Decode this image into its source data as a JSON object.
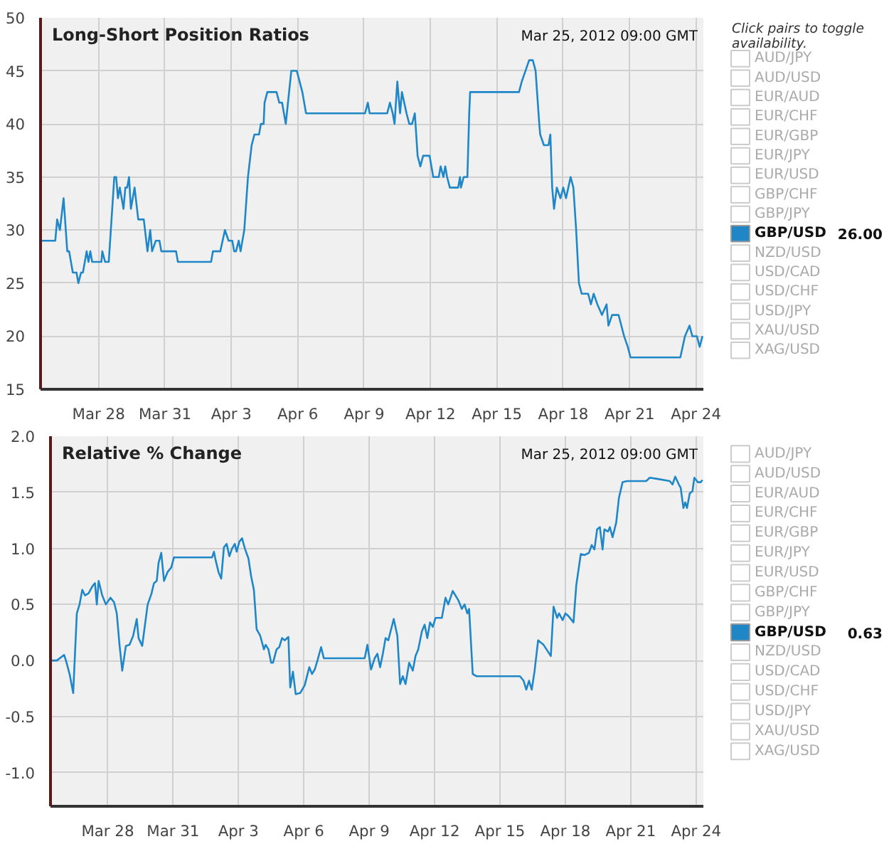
{
  "chart_data": [
    {
      "type": "line",
      "title": "Long-Short Position Ratios",
      "legend_title": "Click pairs to toggle availability.",
      "annotations": [
        "Mar 25, 2012 09:00 GMT",
        "26.00"
      ],
      "grid": true,
      "legend": "right",
      "xlim": [
        "2012-03-25T09:00",
        "2012-04-24T08:00"
      ],
      "xticks": [
        {
          "value": "2012-03-28",
          "label": "Mar 28"
        },
        {
          "value": "2012-03-31",
          "label": "Mar 31"
        },
        {
          "value": "2012-04-03",
          "label": "Apr 3"
        },
        {
          "value": "2012-04-06",
          "label": "Apr 6"
        },
        {
          "value": "2012-04-09",
          "label": "Apr 9"
        },
        {
          "value": "2012-04-12",
          "label": "Apr 12"
        },
        {
          "value": "2012-04-15",
          "label": "Apr 15"
        },
        {
          "value": "2012-04-18",
          "label": "Apr 18"
        },
        {
          "value": "2012-04-21",
          "label": "Apr 21"
        },
        {
          "value": "2012-04-24",
          "label": "Apr 24"
        }
      ],
      "ylim": [
        15,
        50
      ],
      "yticks": [
        15,
        20,
        25,
        30,
        35,
        40,
        45,
        50
      ],
      "series": [
        {
          "name": "AUD/JPY"
        },
        {
          "name": "AUD/USD"
        },
        {
          "name": "EUR/AUD"
        },
        {
          "name": "EUR/CHF"
        },
        {
          "name": "EUR/GBP"
        },
        {
          "name": "EUR/JPY"
        },
        {
          "name": "EUR/USD"
        },
        {
          "name": "GBP/CHF"
        },
        {
          "name": "GBP/JPY"
        },
        {
          "name": "GBP/USD",
          "color": "#1f86c8",
          "x": [
            "2012-03-25T09:00",
            "2012-03-26T01:00",
            "2012-03-26T03:00",
            "2012-03-26T06:00",
            "2012-03-26T10:00",
            "2012-03-26T14:00",
            "2012-03-26T16:00",
            "2012-03-26T20:00",
            "2012-03-27T00:00",
            "2012-03-27T02:00",
            "2012-03-27T05:00",
            "2012-03-27T07:00",
            "2012-03-27T11:00",
            "2012-03-27T13:00",
            "2012-03-27T15:00",
            "2012-03-27T17:00",
            "2012-03-28T03:00",
            "2012-03-28T04:00",
            "2012-03-28T07:00",
            "2012-03-28T11:00",
            "2012-03-28T17:00",
            "2012-03-28T19:00",
            "2012-03-28T21:00",
            "2012-03-28T23:00",
            "2012-03-29T03:00",
            "2012-03-29T05:00",
            "2012-03-29T07:00",
            "2012-03-29T09:00",
            "2012-03-29T11:00",
            "2012-03-29T15:00",
            "2012-03-29T19:00",
            "2012-03-30T01:00",
            "2012-03-30T05:00",
            "2012-03-30T08:00",
            "2012-03-30T10:00",
            "2012-03-30T14:00",
            "2012-03-30T18:00",
            "2012-03-30T20:00",
            "2012-03-31T12:00",
            "2012-03-31T14:00",
            "2012-04-02T02:00",
            "2012-04-02T04:00",
            "2012-04-02T12:00",
            "2012-04-02T17:00",
            "2012-04-02T21:00",
            "2012-04-03T01:00",
            "2012-04-03T03:00",
            "2012-04-03T05:00",
            "2012-04-03T08:00",
            "2012-04-03T10:00",
            "2012-04-03T14:00",
            "2012-04-03T18:00",
            "2012-04-03T22:00",
            "2012-04-04T01:00",
            "2012-04-04T06:00",
            "2012-04-04T08:00",
            "2012-04-04T11:00",
            "2012-04-04T12:00",
            "2012-04-04T15:00",
            "2012-04-05T01:00",
            "2012-04-05T04:00",
            "2012-04-05T07:00",
            "2012-04-05T11:00",
            "2012-04-05T17:00",
            "2012-04-05T23:00",
            "2012-04-06T05:00",
            "2012-04-06T09:00",
            "2012-04-09T01:00",
            "2012-04-09T04:00",
            "2012-04-09T06:00",
            "2012-04-10T01:00",
            "2012-04-10T04:00",
            "2012-04-10T07:00",
            "2012-04-10T09:00",
            "2012-04-10T12:00",
            "2012-04-10T15:00",
            "2012-04-10T17:00",
            "2012-04-10T22:00",
            "2012-04-11T01:00",
            "2012-04-11T04:00",
            "2012-04-11T07:00",
            "2012-04-11T10:00",
            "2012-04-11T13:00",
            "2012-04-11T16:00",
            "2012-04-11T23:00",
            "2012-04-12T03:00",
            "2012-04-12T09:00",
            "2012-04-12T11:00",
            "2012-04-12T14:00",
            "2012-04-12T16:00",
            "2012-04-12T18:00",
            "2012-04-12T21:00",
            "2012-04-13T06:00",
            "2012-04-13T08:00",
            "2012-04-13T09:00",
            "2012-04-13T12:00",
            "2012-04-13T16:00",
            "2012-04-13T18:00",
            "2012-04-13T19:00",
            "2012-04-16T00:00",
            "2012-04-16T03:00",
            "2012-04-16T07:00",
            "2012-04-16T11:00",
            "2012-04-16T15:00",
            "2012-04-16T18:00",
            "2012-04-16T22:00",
            "2012-04-16T23:00",
            "2012-04-17T03:00",
            "2012-04-17T08:00",
            "2012-04-17T10:00",
            "2012-04-17T12:00",
            "2012-04-17T14:00",
            "2012-04-17T17:00",
            "2012-04-17T21:00",
            "2012-04-18T00:00",
            "2012-04-18T03:00",
            "2012-04-18T08:00",
            "2012-04-18T11:00",
            "2012-04-18T14:00",
            "2012-04-18T17:00",
            "2012-04-18T20:00",
            "2012-04-19T03:00",
            "2012-04-19T06:00",
            "2012-04-19T09:00",
            "2012-04-19T13:00",
            "2012-04-19T18:00",
            "2012-04-19T23:00",
            "2012-04-20T01:00",
            "2012-04-20T05:00",
            "2012-04-20T12:00",
            "2012-04-20T15:00",
            "2012-04-20T18:00",
            "2012-04-20T22:00",
            "2012-04-21T01:00",
            "2012-04-23T07:00",
            "2012-04-23T12:00",
            "2012-04-23T17:00",
            "2012-04-23T20:00",
            "2012-04-24T01:00",
            "2012-04-24T04:00",
            "2012-04-24T07:00"
          ],
          "values": [
            29,
            29,
            31,
            30,
            33,
            28,
            28,
            26,
            26,
            25,
            26,
            26,
            28,
            27,
            28,
            27,
            27,
            28,
            27,
            27,
            35,
            35,
            33,
            34,
            32,
            34,
            34,
            35,
            32,
            34,
            31,
            31,
            28,
            30,
            28,
            29,
            29,
            28,
            28,
            27,
            27,
            28,
            28,
            30,
            29,
            29,
            28,
            28,
            29,
            28,
            30,
            35,
            38,
            39,
            39,
            40,
            40,
            42,
            43,
            43,
            42,
            42,
            40,
            45,
            45,
            43,
            41,
            41,
            42,
            41,
            41,
            42,
            41,
            40,
            44,
            41,
            43,
            41,
            40,
            40,
            41,
            37,
            36,
            37,
            37,
            35,
            35,
            36,
            35,
            36,
            35,
            34,
            34,
            35,
            34,
            35,
            35,
            41,
            43,
            43,
            44,
            45,
            46,
            46,
            45,
            40,
            39,
            38,
            38,
            39,
            34,
            32,
            34,
            33,
            34,
            33,
            35,
            34,
            30,
            25,
            24,
            24,
            23,
            24,
            23,
            22,
            23,
            21,
            22,
            22,
            21,
            20,
            19,
            18,
            18,
            20,
            21,
            20,
            20,
            19,
            20
          ]
        },
        {
          "name": "NZD/USD"
        },
        {
          "name": "USD/CAD"
        },
        {
          "name": "USD/CHF"
        },
        {
          "name": "USD/JPY"
        },
        {
          "name": "XAU/USD"
        },
        {
          "name": "XAG/USD"
        }
      ]
    },
    {
      "type": "line",
      "title": "Relative % Change",
      "annotations": [
        "Mar 25, 2012 09:00 GMT",
        "0.63"
      ],
      "grid": true,
      "legend": "right",
      "xlim": [
        "2012-03-25T09:00",
        "2012-04-24T08:00"
      ],
      "xticks": [
        {
          "value": "2012-03-28",
          "label": "Mar 28"
        },
        {
          "value": "2012-03-31",
          "label": "Mar 31"
        },
        {
          "value": "2012-04-03",
          "label": "Apr 3"
        },
        {
          "value": "2012-04-06",
          "label": "Apr 6"
        },
        {
          "value": "2012-04-09",
          "label": "Apr 9"
        },
        {
          "value": "2012-04-12",
          "label": "Apr 12"
        },
        {
          "value": "2012-04-15",
          "label": "Apr 15"
        },
        {
          "value": "2012-04-18",
          "label": "Apr 18"
        },
        {
          "value": "2012-04-21",
          "label": "Apr 21"
        },
        {
          "value": "2012-04-24",
          "label": "Apr 24"
        }
      ],
      "ylim": [
        -1.3,
        2.0
      ],
      "yticks": [
        {
          "value": -1.0,
          "label": "-1.0"
        },
        {
          "value": -0.5,
          "label": "-0.5"
        },
        {
          "value": 0,
          "label": "0.0"
        },
        {
          "value": 0.5,
          "label": "0.5"
        },
        {
          "value": 1.0,
          "label": "1.0"
        },
        {
          "value": 1.5,
          "label": "1.5"
        },
        {
          "value": 2.0,
          "label": "2.0"
        }
      ],
      "series": [
        {
          "name": "AUD/JPY"
        },
        {
          "name": "AUD/USD"
        },
        {
          "name": "EUR/AUD"
        },
        {
          "name": "EUR/CHF"
        },
        {
          "name": "EUR/GBP"
        },
        {
          "name": "EUR/JPY"
        },
        {
          "name": "EUR/USD"
        },
        {
          "name": "GBP/CHF"
        },
        {
          "name": "GBP/JPY"
        },
        {
          "name": "GBP/USD",
          "color": "#1f86c8",
          "x": [
            "2012-03-25T09:00",
            "2012-03-25T16:00",
            "2012-03-26T00:00",
            "2012-03-26T02:00",
            "2012-03-26T06:00",
            "2012-03-26T10:00",
            "2012-03-26T14:00",
            "2012-03-26T17:00",
            "2012-03-26T20:00",
            "2012-03-26T23:00",
            "2012-03-27T03:00",
            "2012-03-27T07:00",
            "2012-03-27T10:00",
            "2012-03-27T12:00",
            "2012-03-27T14:00",
            "2012-03-27T18:00",
            "2012-03-27T22:00",
            "2012-03-28T03:00",
            "2012-03-28T07:00",
            "2012-03-28T10:00",
            "2012-03-28T13:00",
            "2012-03-28T16:00",
            "2012-03-28T20:00",
            "2012-03-29T00:00",
            "2012-03-29T04:00",
            "2012-03-29T08:00",
            "2012-03-29T10:00",
            "2012-03-29T14:00",
            "2012-03-29T20:00",
            "2012-03-30T00:00",
            "2012-03-30T03:00",
            "2012-03-30T06:00",
            "2012-03-30T08:00",
            "2012-03-30T11:00",
            "2012-03-30T14:00",
            "2012-03-30T18:00",
            "2012-03-30T22:00",
            "2012-03-31T01:00",
            "2012-04-01T19:00",
            "2012-04-01T21:00",
            "2012-04-01T23:00",
            "2012-04-02T02:00",
            "2012-04-02T05:00",
            "2012-04-02T08:00",
            "2012-04-02T11:00",
            "2012-04-02T14:00",
            "2012-04-02T17:00",
            "2012-04-02T20:00",
            "2012-04-02T22:00",
            "2012-04-03T01:00",
            "2012-04-03T04:00",
            "2012-04-03T07:00",
            "2012-04-03T11:00",
            "2012-04-03T14:00",
            "2012-04-03T17:00",
            "2012-04-03T20:00",
            "2012-04-04T00:00",
            "2012-04-04T04:00",
            "2012-04-04T06:00",
            "2012-04-04T09:00",
            "2012-04-04T12:00",
            "2012-04-04T14:00",
            "2012-04-04T18:00",
            "2012-04-04T21:00",
            "2012-04-05T00:00",
            "2012-04-05T03:00",
            "2012-04-05T07:00",
            "2012-04-05T09:00",
            "2012-04-05T12:00",
            "2012-04-05T15:00",
            "2012-04-05T20:00",
            "2012-04-06T01:00",
            "2012-04-06T06:00",
            "2012-04-06T09:00",
            "2012-04-06T12:00",
            "2012-04-06T15:00",
            "2012-04-06T19:00",
            "2012-04-06T22:00",
            "2012-04-08T19:00",
            "2012-04-08T22:00",
            "2012-04-09T02:00",
            "2012-04-09T06:00",
            "2012-04-09T09:00",
            "2012-04-09T12:00",
            "2012-04-09T15:00",
            "2012-04-09T18:00",
            "2012-04-09T21:00",
            "2012-04-10T03:00",
            "2012-04-10T07:00",
            "2012-04-10T10:00",
            "2012-04-10T13:00",
            "2012-04-10T16:00",
            "2012-04-10T20:00",
            "2012-04-11T00:00",
            "2012-04-11T03:00",
            "2012-04-11T06:00",
            "2012-04-11T10:00",
            "2012-04-11T13:00",
            "2012-04-11T16:00",
            "2012-04-11T19:00",
            "2012-04-11T22:00",
            "2012-04-12T01:00",
            "2012-04-12T08:00",
            "2012-04-12T12:00",
            "2012-04-12T15:00",
            "2012-04-12T20:00",
            "2012-04-13T02:00",
            "2012-04-13T06:00",
            "2012-04-13T09:00",
            "2012-04-13T12:00",
            "2012-04-13T14:00",
            "2012-04-13T18:00",
            "2012-04-13T22:00",
            "2012-04-15T22:00",
            "2012-04-16T02:00",
            "2012-04-16T05:00",
            "2012-04-16T08:00",
            "2012-04-16T11:00",
            "2012-04-16T14:00",
            "2012-04-16T18:00",
            "2012-04-17T00:00",
            "2012-04-17T08:00",
            "2012-04-17T11:00",
            "2012-04-17T15:00",
            "2012-04-17T17:00",
            "2012-04-17T21:00",
            "2012-04-18T00:00",
            "2012-04-18T03:00",
            "2012-04-18T09:00",
            "2012-04-18T12:00",
            "2012-04-18T17:00",
            "2012-04-18T21:00",
            "2012-04-19T02:00",
            "2012-04-19T05:00",
            "2012-04-19T08:00",
            "2012-04-19T11:00",
            "2012-04-19T14:00",
            "2012-04-19T17:00",
            "2012-04-19T19:00",
            "2012-04-19T23:00",
            "2012-04-20T01:00",
            "2012-04-20T04:00",
            "2012-04-20T08:00",
            "2012-04-20T11:00",
            "2012-04-20T15:00",
            "2012-04-20T20:00",
            "2012-04-21T17:00",
            "2012-04-21T21:00",
            "2012-04-22T05:00",
            "2012-04-22T19:00",
            "2012-04-22T22:00",
            "2012-04-23T01:00",
            "2012-04-23T05:00",
            "2012-04-23T07:00",
            "2012-04-23T10:00",
            "2012-04-23T12:00",
            "2012-04-23T14:00",
            "2012-04-23T17:00",
            "2012-04-23T20:00",
            "2012-04-23T22:00",
            "2012-04-24T02:00",
            "2012-04-24T05:00",
            "2012-04-24T07:00"
          ],
          "values": [
            0.0,
            0.0,
            0.05,
            0.0,
            -0.12,
            -0.29,
            0.42,
            0.5,
            0.63,
            0.58,
            0.6,
            0.66,
            0.69,
            0.5,
            0.71,
            0.58,
            0.5,
            0.56,
            0.52,
            0.42,
            0.14,
            -0.09,
            0.13,
            0.14,
            0.22,
            0.37,
            0.2,
            0.13,
            0.5,
            0.59,
            0.69,
            0.71,
            0.87,
            0.96,
            0.71,
            0.79,
            0.83,
            0.92,
            0.92,
            0.97,
            0.89,
            0.79,
            0.73,
            1.01,
            1.04,
            0.93,
            1.0,
            1.04,
            0.97,
            1.06,
            1.09,
            1.0,
            0.91,
            0.75,
            0.63,
            0.28,
            0.22,
            0.1,
            0.14,
            0.1,
            -0.02,
            -0.02,
            0.1,
            0.12,
            0.2,
            0.18,
            0.21,
            -0.24,
            -0.1,
            -0.3,
            -0.29,
            -0.22,
            -0.06,
            -0.12,
            -0.08,
            0.0,
            0.12,
            0.02,
            0.02,
            0.14,
            -0.08,
            0.02,
            0.06,
            -0.06,
            0.06,
            0.2,
            0.18,
            0.37,
            0.22,
            -0.21,
            -0.14,
            -0.21,
            -0.02,
            -0.09,
            0.04,
            0.1,
            0.26,
            0.32,
            0.2,
            0.34,
            0.3,
            0.38,
            0.38,
            0.56,
            0.5,
            0.62,
            0.54,
            0.46,
            0.5,
            0.42,
            0.46,
            -0.12,
            -0.14,
            -0.14,
            -0.18,
            -0.26,
            -0.18,
            -0.26,
            -0.1,
            0.18,
            0.14,
            0.04,
            0.48,
            0.38,
            0.42,
            0.36,
            0.42,
            0.4,
            0.34,
            0.67,
            0.95,
            0.94,
            0.96,
            1.03,
            0.99,
            1.17,
            1.19,
            0.99,
            1.17,
            1.15,
            1.19,
            1.1,
            1.23,
            1.45,
            1.59,
            1.6,
            1.6,
            1.63,
            1.62,
            1.6,
            1.57,
            1.64,
            1.57,
            1.54,
            1.36,
            1.41,
            1.36,
            1.49,
            1.51,
            1.63,
            1.59,
            1.59,
            1.61
          ]
        },
        {
          "name": "NZD/USD"
        },
        {
          "name": "USD/CAD"
        },
        {
          "name": "USD/CHF"
        },
        {
          "name": "USD/JPY"
        },
        {
          "name": "XAU/USD"
        },
        {
          "name": "XAG/USD"
        }
      ]
    }
  ]
}
